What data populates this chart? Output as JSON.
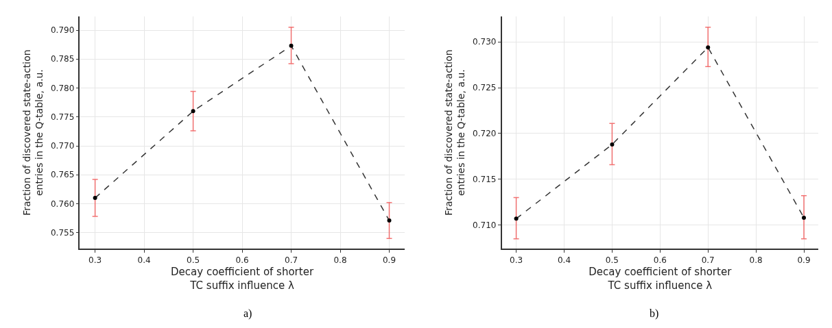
{
  "chart_data": [
    {
      "type": "line",
      "xlabel": "Decay coefficient of shorter\nTC suffix influence λ",
      "ylabel": "Fraction of discovered state-action\nentries in the Q-table, a.u.",
      "annotations": [
        "a)"
      ],
      "x": [
        0.3,
        0.5,
        0.7,
        0.9
      ],
      "series": [
        {
          "color": "#333333",
          "values": [
            0.761,
            0.776,
            0.7873,
            0.7571
          ],
          "errors": [
            [
              0.7578,
              0.7642
            ],
            [
              0.7726,
              0.7794
            ],
            [
              0.7842,
              0.7905
            ],
            [
              0.754,
              0.7602
            ]
          ]
        }
      ],
      "xlim": [
        0.269,
        0.931
      ],
      "xticks": [
        0.3,
        0.4,
        0.5,
        0.6,
        0.7,
        0.8,
        0.9
      ],
      "ylim": [
        0.7522,
        0.7924
      ],
      "yticks": [
        0.755,
        {
          "value": 0.76,
          "label": "0.760"
        },
        0.765,
        {
          "value": 0.77,
          "label": "0.770"
        },
        0.775,
        {
          "value": 0.78,
          "label": "0.780"
        },
        0.785,
        {
          "value": 0.79,
          "label": "0.790"
        }
      ],
      "grid": true,
      "marker": "circle",
      "line_style": "dashed"
    },
    {
      "type": "line",
      "xlabel": "Decay coefficient of shorter\nTC suffix influence λ",
      "ylabel": "Fraction of discovered state-action\nentries in the Q-table, a.u.",
      "annotations": [
        "b)"
      ],
      "x": [
        0.3,
        0.5,
        0.7,
        0.9
      ],
      "series": [
        {
          "color": "#333333",
          "values": [
            0.7107,
            0.7188,
            0.7294,
            0.7108
          ],
          "errors": [
            [
              0.7085,
              0.713
            ],
            [
              0.7166,
              0.7211
            ],
            [
              0.7273,
              0.7316
            ],
            [
              0.7085,
              0.7132
            ]
          ]
        }
      ],
      "xlim": [
        0.27,
        0.93
      ],
      "xticks": [
        0.3,
        0.4,
        0.5,
        0.6,
        0.7,
        0.8,
        0.9
      ],
      "ylim": [
        0.7074,
        0.7328
      ],
      "yticks": [
        {
          "value": 0.71,
          "label": "0.710"
        },
        0.715,
        {
          "value": 0.72,
          "label": "0.720"
        },
        0.725,
        {
          "value": 0.73,
          "label": "0.730"
        }
      ],
      "grid": true,
      "marker": "circle",
      "line_style": "dashed"
    }
  ]
}
